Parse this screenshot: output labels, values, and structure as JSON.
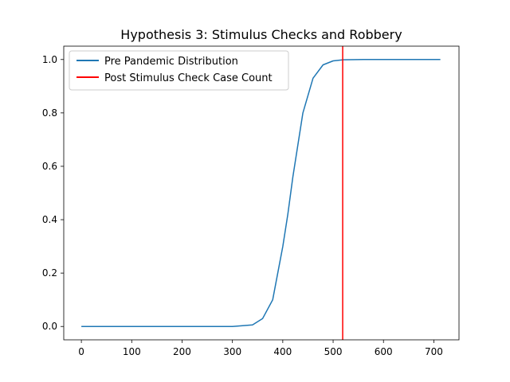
{
  "chart_data": {
    "type": "line",
    "title": "Hypothesis 3: Stimulus Checks and Robbery",
    "xlabel": "",
    "ylabel": "",
    "xlim": [
      -35,
      750
    ],
    "ylim": [
      -0.05,
      1.05
    ],
    "x_ticks": [
      0,
      100,
      200,
      300,
      400,
      500,
      600,
      700
    ],
    "y_ticks": [
      0.0,
      0.2,
      0.4,
      0.6,
      0.8,
      1.0
    ],
    "x_tick_labels": [
      "0",
      "100",
      "200",
      "300",
      "400",
      "500",
      "600",
      "700"
    ],
    "y_tick_labels": [
      "0.0",
      "0.2",
      "0.4",
      "0.6",
      "0.8",
      "1.0"
    ],
    "grid": false,
    "legend_position": "top-left",
    "series": [
      {
        "name": "Pre Pandemic Distribution",
        "color": "#1f77b4",
        "x": [
          0,
          100,
          200,
          300,
          340,
          360,
          380,
          400,
          410,
          420,
          430,
          440,
          460,
          480,
          500,
          520,
          560,
          600,
          713
        ],
        "y": [
          0.0,
          0.0,
          0.0,
          0.0,
          0.006,
          0.03,
          0.1,
          0.3,
          0.42,
          0.56,
          0.68,
          0.8,
          0.93,
          0.98,
          0.995,
          0.999,
          1.0,
          1.0,
          1.0
        ]
      }
    ],
    "vlines": [
      {
        "name": "Post Stimulus Check Case Count",
        "color": "#ff0000",
        "x": 519
      }
    ]
  }
}
